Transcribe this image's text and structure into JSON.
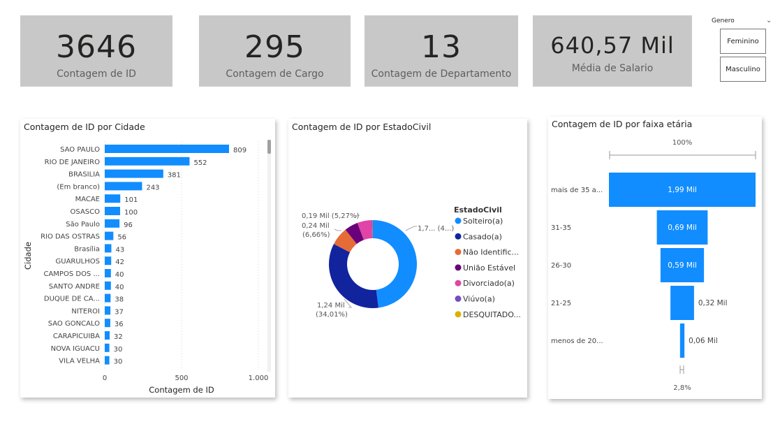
{
  "kpis": [
    {
      "value": "3646",
      "label": "Contagem de ID"
    },
    {
      "value": "295",
      "label": "Contagem de Cargo"
    },
    {
      "value": "13",
      "label": "Contagem de Departamento"
    },
    {
      "value": "640,57 Mil",
      "label": "Média de Salario"
    }
  ],
  "slicer": {
    "title": "Genero",
    "options": [
      "Feminino",
      "Masculino"
    ]
  },
  "colors": {
    "bar": "#118dff",
    "kpi_bg": "#c8c8c8",
    "solteiro": "#118dff",
    "casado": "#12239e",
    "nao_identificado": "#e66c37",
    "uniao_estavel": "#6b007b",
    "divorciado": "#e044a7",
    "viuvo": "#744ec2",
    "desquitado": "#d9b300"
  },
  "chart_data": [
    {
      "type": "bar",
      "orientation": "horizontal",
      "title": "Contagem de ID por Cidade",
      "xlabel": "Contagem de ID",
      "ylabel": "Cidade",
      "categories": [
        "SAO PAULO",
        "RIO DE JANEIRO",
        "BRASILIA",
        "(Em branco)",
        "MACAE",
        "OSASCO",
        "São Paulo",
        "RIO DAS OSTRAS",
        "Brasília",
        "GUARULHOS",
        "CAMPOS DOS ...",
        "SANTO ANDRE",
        "DUQUE DE CA...",
        "NITEROI",
        "SAO GONCALO",
        "CARAPICUIBA",
        "NOVA IGUACU",
        "VILA VELHA"
      ],
      "values": [
        809,
        552,
        381,
        243,
        101,
        100,
        96,
        56,
        43,
        42,
        40,
        40,
        38,
        37,
        36,
        32,
        30,
        30
      ],
      "xlim": [
        0,
        1000
      ],
      "xticks": [
        "0",
        "500",
        "1.000"
      ],
      "grid": true
    },
    {
      "type": "pie",
      "variant": "donut",
      "title": "Contagem de ID por EstadoCivil",
      "legend_title": "EstadoCivil",
      "legend_position": "right",
      "slices": [
        {
          "label": "Solteiro(a)",
          "value": 1720,
          "color_key": "solteiro"
        },
        {
          "label": "Casado(a)",
          "value": 1240,
          "color_key": "casado"
        },
        {
          "label": "Não Identific...",
          "value": 240,
          "color_key": "nao_identificado"
        },
        {
          "label": "União Estável",
          "value": 180,
          "color_key": "uniao_estavel"
        },
        {
          "label": "Divorciado(a)",
          "value": 190,
          "color_key": "divorciado"
        },
        {
          "label": "Viúvo(a)",
          "value": 10,
          "color_key": "viuvo"
        },
        {
          "label": "DESQUITADO...",
          "value": 5,
          "color_key": "desquitado"
        }
      ],
      "data_labels": [
        {
          "text": "1,7... (4...)"
        },
        {
          "text": "1,24 Mil",
          "text2": "(34,01%)"
        },
        {
          "text": "0,24 Mil",
          "text2": "(6,66%)"
        },
        {
          "text": "0,19 Mil (5,27%)"
        }
      ]
    },
    {
      "type": "bar",
      "variant": "funnel",
      "title": "Contagem de ID por faixa etária",
      "categories": [
        "mais de 35 a...",
        "31-35",
        "26-30",
        "21-25",
        "menos de 20..."
      ],
      "values": [
        1990,
        690,
        590,
        320,
        60
      ],
      "value_labels": [
        "1,99 Mil",
        "0,69 Mil",
        "0,59 Mil",
        "0,32 Mil",
        "0,06 Mil"
      ],
      "top_label": "100%",
      "bottom_label": "2,8%"
    }
  ]
}
